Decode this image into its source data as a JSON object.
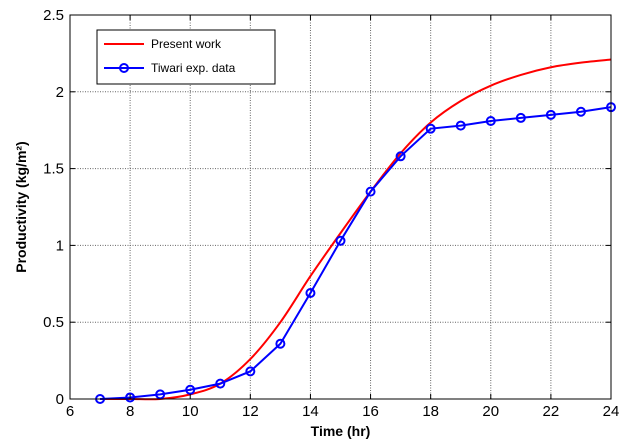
{
  "chart_data": {
    "type": "line",
    "xlabel": "Time (hr)",
    "ylabel": "Productivity (kg/m²)",
    "xlim": [
      6,
      24
    ],
    "ylim": [
      0,
      2.5
    ],
    "xticks": [
      6,
      8,
      10,
      12,
      14,
      16,
      18,
      20,
      22,
      24
    ],
    "yticks": [
      0,
      0.5,
      1,
      1.5,
      2,
      2.5
    ],
    "xtick_labels": [
      "6",
      "8",
      "10",
      "12",
      "14",
      "16",
      "18",
      "20",
      "22",
      "24"
    ],
    "ytick_labels": [
      "0",
      "0.5",
      "1",
      "1.5",
      "2",
      "2.5"
    ],
    "grid": true,
    "legend_position": "top-left",
    "series": [
      {
        "name": "Present work",
        "color": "#ff0000",
        "marker": "none",
        "x": [
          7,
          8,
          9,
          10,
          11,
          12,
          13,
          14,
          15,
          16,
          17,
          18,
          19,
          20,
          21,
          22,
          23,
          24
        ],
        "y": [
          0,
          0,
          0,
          0.03,
          0.1,
          0.26,
          0.5,
          0.8,
          1.08,
          1.35,
          1.6,
          1.8,
          1.94,
          2.04,
          2.11,
          2.16,
          2.19,
          2.21
        ]
      },
      {
        "name": "Tiwari exp. data",
        "color": "#0000ff",
        "marker": "circle",
        "x": [
          7,
          8,
          9,
          10,
          11,
          12,
          13,
          14,
          15,
          16,
          17,
          18,
          19,
          20,
          21,
          22,
          23,
          24
        ],
        "y": [
          0,
          0.01,
          0.03,
          0.06,
          0.1,
          0.18,
          0.36,
          0.69,
          1.03,
          1.35,
          1.58,
          1.76,
          1.78,
          1.81,
          1.83,
          1.85,
          1.87,
          1.9
        ]
      }
    ]
  }
}
